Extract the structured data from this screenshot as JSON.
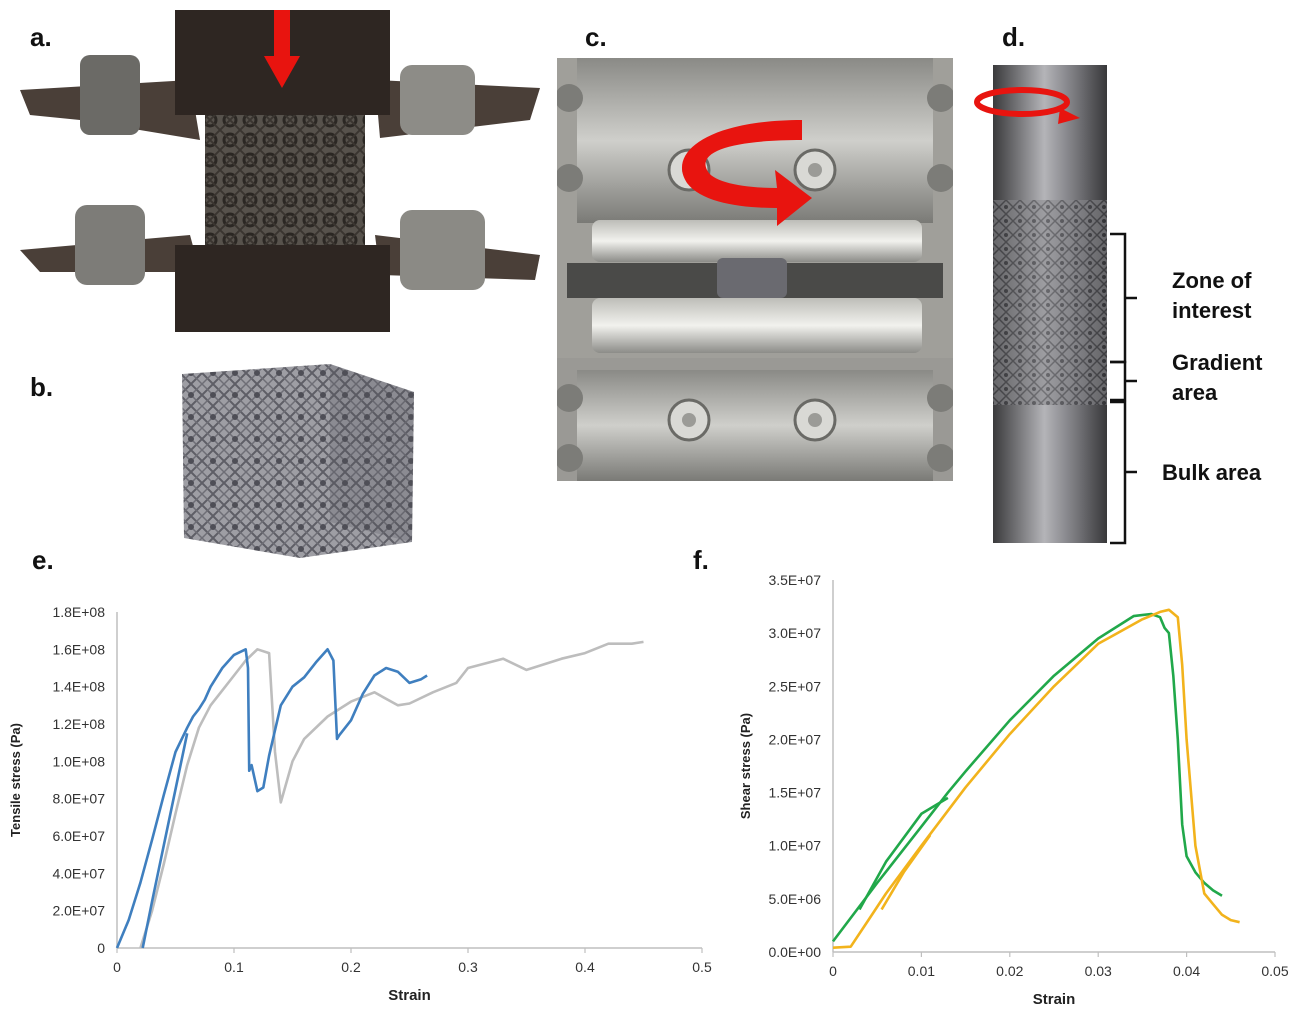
{
  "panels": {
    "a": {
      "label": "a."
    },
    "b": {
      "label": "b."
    },
    "c": {
      "label": "c."
    },
    "d": {
      "label": "d.",
      "zones": {
        "interest_line1": "Zone of",
        "interest_line2": "interest",
        "gradient_line1": "Gradient",
        "gradient_line2": "area",
        "bulk": "Bulk area"
      }
    },
    "e": {
      "label": "e."
    },
    "f": {
      "label": "f."
    }
  },
  "colors": {
    "arrow": "#e8140f",
    "blue": "#3f7fbf",
    "grey": "#bdbdbd",
    "green": "#21a84a",
    "yellow": "#f2b31c",
    "axis": "#bfbfbf"
  },
  "chart_data": [
    {
      "type": "line",
      "panel": "e",
      "xlabel": "Strain",
      "ylabel": "Tensile stress (Pa)",
      "xlim": [
        0,
        0.5
      ],
      "ylim": [
        0,
        180000000
      ],
      "x_ticks": [
        "0",
        "0.1",
        "0.2",
        "0.3",
        "0.4",
        "0.5"
      ],
      "y_ticks": [
        "0",
        "2.0E+07",
        "4.0E+07",
        "6.0E+07",
        "8.0E+07",
        "1.0E+08",
        "1.2E+08",
        "1.4E+08",
        "1.6E+08",
        "1.8E+08"
      ],
      "series": [
        {
          "color": "#bdbdbd",
          "x": [
            0.02,
            0.03,
            0.04,
            0.05,
            0.06,
            0.07,
            0.08,
            0.09,
            0.1,
            0.11,
            0.12,
            0.13,
            0.135,
            0.14,
            0.15,
            0.16,
            0.18,
            0.2,
            0.22,
            0.24,
            0.25,
            0.27,
            0.29,
            0.3,
            0.33,
            0.35,
            0.38,
            0.4,
            0.42,
            0.44,
            0.45
          ],
          "y": [
            0,
            20000000,
            45000000,
            72000000,
            98000000,
            118000000,
            130000000,
            138000000,
            146000000,
            154000000,
            160000000,
            158000000,
            105000000,
            78000000,
            100000000,
            112000000,
            124000000,
            132000000,
            137000000,
            130000000,
            131000000,
            137000000,
            142000000,
            150000000,
            155000000,
            149000000,
            155000000,
            158000000,
            163000000,
            163000000,
            164000000
          ]
        },
        {
          "color": "#3f7fbf",
          "x": [
            0,
            0.01,
            0.02,
            0.03,
            0.04,
            0.05,
            0.06,
            0.065,
            0.07,
            0.075,
            0.08,
            0.09,
            0.1,
            0.11,
            0.112,
            0.113,
            0.115,
            0.12,
            0.125,
            0.13,
            0.14,
            0.15,
            0.16,
            0.17,
            0.18,
            0.185,
            0.188,
            0.19,
            0.2,
            0.21,
            0.22,
            0.23,
            0.24,
            0.25,
            0.26,
            0.265
          ],
          "y": [
            0,
            15000000,
            35000000,
            58000000,
            82000000,
            105000000,
            118000000,
            124000000,
            128000000,
            133000000,
            140000000,
            150000000,
            157000000,
            160000000,
            150000000,
            95000000,
            98000000,
            84000000,
            86000000,
            103000000,
            130000000,
            140000000,
            145000000,
            153000000,
            160000000,
            154000000,
            112000000,
            114000000,
            122000000,
            136000000,
            146000000,
            150000000,
            148000000,
            142000000,
            144000000,
            146000000
          ]
        },
        {
          "color": "#3f7fbf",
          "x": [
            0.022,
            0.03,
            0.04,
            0.05,
            0.06
          ],
          "y": [
            0,
            25000000,
            55000000,
            85000000,
            115000000
          ]
        }
      ]
    },
    {
      "type": "line",
      "panel": "f",
      "xlabel": "Strain",
      "ylabel": "Shear stress (Pa)",
      "xlim": [
        0,
        0.05
      ],
      "ylim": [
        0,
        35000000
      ],
      "x_ticks": [
        "0",
        "0.01",
        "0.02",
        "0.03",
        "0.04",
        "0.05"
      ],
      "y_ticks": [
        "0.0E+00",
        "5.0E+06",
        "1.0E+07",
        "1.5E+07",
        "2.0E+07",
        "2.5E+07",
        "3.0E+07",
        "3.5E+07"
      ],
      "series": [
        {
          "color": "#21a84a",
          "x": [
            0,
            0.005,
            0.01,
            0.013,
            0.015,
            0.02,
            0.025,
            0.03,
            0.034,
            0.036,
            0.037,
            0.0375,
            0.038,
            0.0385,
            0.039,
            0.0395,
            0.04,
            0.041,
            0.042,
            0.043,
            0.044
          ],
          "y": [
            1000000,
            6500000,
            11800000,
            15000000,
            17000000,
            21800000,
            26000000,
            29500000,
            31600000,
            31800000,
            31500000,
            30500000,
            30000000,
            26000000,
            20000000,
            12000000,
            9000000,
            7500000,
            6500000,
            5800000,
            5300000
          ]
        },
        {
          "color": "#21a84a",
          "x": [
            0.003,
            0.006,
            0.01,
            0.013
          ],
          "y": [
            4000000,
            8500000,
            13000000,
            14500000
          ]
        },
        {
          "color": "#f2b31c",
          "x": [
            0,
            0.002,
            0.004,
            0.006,
            0.01,
            0.015,
            0.02,
            0.025,
            0.03,
            0.035,
            0.037,
            0.038,
            0.039,
            0.0395,
            0.04,
            0.041,
            0.042,
            0.043,
            0.044,
            0.045,
            0.046
          ],
          "y": [
            400000,
            500000,
            3000000,
            5500000,
            10000000,
            15500000,
            20500000,
            25000000,
            29000000,
            31300000,
            32000000,
            32200000,
            31500000,
            27000000,
            20000000,
            10000000,
            5500000,
            4500000,
            3500000,
            3000000,
            2800000
          ]
        },
        {
          "color": "#f2b31c",
          "x": [
            0.0055,
            0.008,
            0.011
          ],
          "y": [
            4000000,
            7500000,
            11000000
          ]
        }
      ]
    }
  ]
}
